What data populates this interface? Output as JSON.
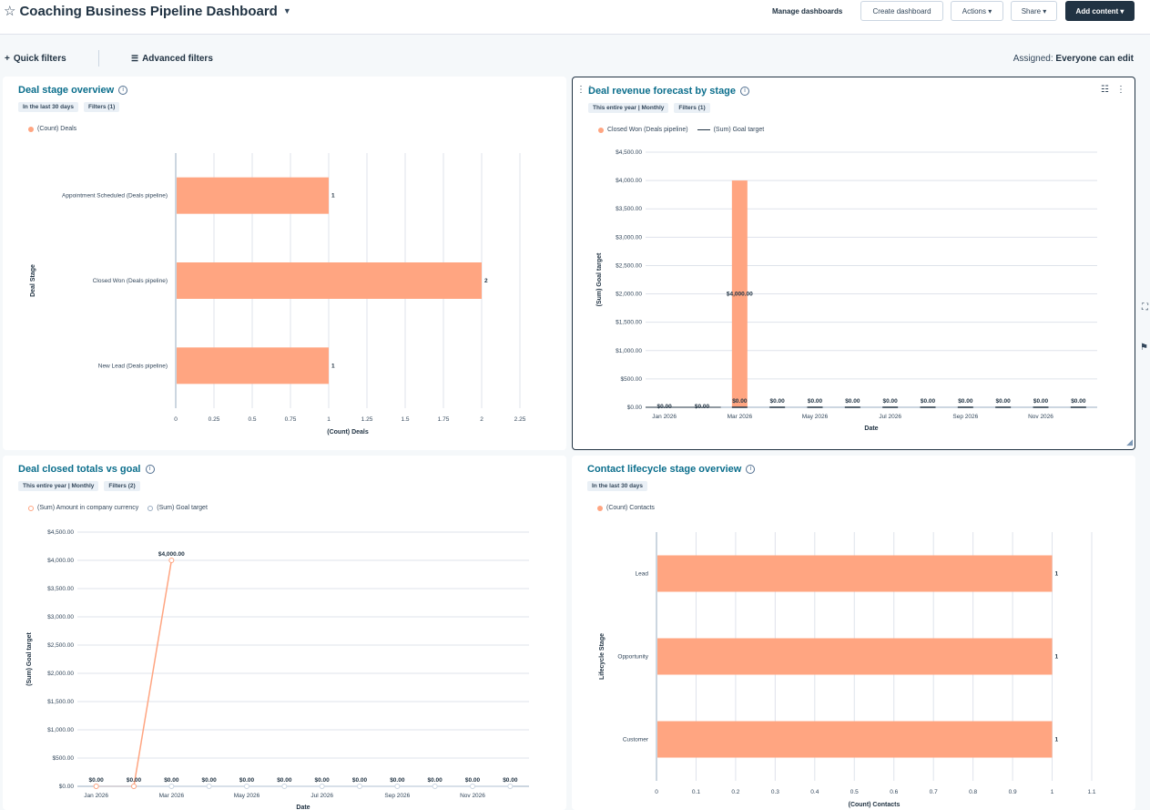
{
  "header": {
    "title": "Coaching Business Pipeline Dashboard",
    "manage": "Manage dashboards",
    "create": "Create dashboard",
    "actions": "Actions ▾",
    "share": "Share ▾",
    "add": "Add content ▾"
  },
  "filters": {
    "quick": "Quick filters",
    "advanced": "Advanced filters",
    "assigned_label": "Assigned:",
    "assigned_value": "Everyone can edit"
  },
  "colors": {
    "bar": "#ffa581",
    "accent": "#0b6e8c",
    "dark": "#213343"
  },
  "cards": {
    "deal_stage": {
      "title": "Deal stage overview",
      "chips": [
        "In the last 30 days",
        "Filters (1)"
      ],
      "legend": "(Count) Deals"
    },
    "revenue": {
      "title": "Deal revenue forecast by stage",
      "chips": [
        "This entire year | Monthly",
        "Filters (1)"
      ],
      "legend1": "Closed Won (Deals pipeline)",
      "legend2": "(Sum) Goal target"
    },
    "closed": {
      "title": "Deal closed totals vs goal",
      "chips": [
        "This entire year | Monthly",
        "Filters (2)"
      ],
      "legend1": "(Sum) Amount in company currency",
      "legend2": "(Sum) Goal target"
    },
    "lifecycle": {
      "title": "Contact lifecycle stage overview",
      "chips": [
        "In the last 30 days"
      ],
      "legend": "(Count) Contacts"
    }
  },
  "chart_data": [
    {
      "type": "bar",
      "orientation": "horizontal",
      "categories": [
        "Appointment Scheduled (Deals pipeline)",
        "Closed Won (Deals pipeline)",
        "New Lead (Deals pipeline)"
      ],
      "values": [
        1,
        2,
        1
      ],
      "data_labels": [
        "1",
        "2",
        "1"
      ],
      "xlabel": "(Count) Deals",
      "ylabel": "Deal Stage",
      "xlim": [
        0,
        2.25
      ],
      "x_ticks": [
        "0",
        "0.25",
        "0.5",
        "0.75",
        "1",
        "1.25",
        "1.5",
        "1.75",
        "2",
        "2.25"
      ],
      "grid": true
    },
    {
      "type": "bar",
      "categories": [
        "Jan 2026",
        "Feb 2026",
        "Mar 2026",
        "Apr 2026",
        "May 2026",
        "Jun 2026",
        "Jul 2026",
        "Aug 2026",
        "Sep 2026",
        "Oct 2026",
        "Nov 2026",
        "Dec 2026"
      ],
      "x_tick_labels": [
        "Jan 2026",
        "",
        "Mar 2026",
        "",
        "May 2026",
        "",
        "Jul 2026",
        "",
        "Sep 2026",
        "",
        "Nov 2026",
        ""
      ],
      "series": [
        {
          "name": "Closed Won (Deals pipeline)",
          "values": [
            0,
            0,
            4000,
            0,
            0,
            0,
            0,
            0,
            0,
            0,
            0,
            0
          ]
        },
        {
          "name": "(Sum) Goal target",
          "values": [
            0,
            0,
            0,
            0,
            0,
            0,
            0,
            0,
            0,
            0,
            0,
            0
          ]
        }
      ],
      "data_labels": [
        "$0.00",
        "$0.00",
        "$4,000.00",
        "$0.00",
        "$0.00",
        "$0.00",
        "$0.00",
        "$0.00",
        "$0.00",
        "$0.00",
        "$0.00",
        "$0.00"
      ],
      "bar_top_labels": [
        "",
        "",
        "$0.00",
        "$0.00",
        "$0.00",
        "$0.00",
        "$0.00",
        "$0.00",
        "$0.00",
        "$0.00",
        "$0.00",
        "$0.00"
      ],
      "xlabel": "Date",
      "ylabel": "(Sum) Goal target",
      "ylim": [
        0,
        4500
      ],
      "y_ticks": [
        "$0.00",
        "$500.00",
        "$1,000.00",
        "$1,500.00",
        "$2,000.00",
        "$2,500.00",
        "$3,000.00",
        "$3,500.00",
        "$4,000.00",
        "$4,500.00"
      ],
      "grid": true
    },
    {
      "type": "line",
      "x": [
        "Jan 2026",
        "Feb 2026",
        "Mar 2026",
        "Apr 2026",
        "May 2026",
        "Jun 2026",
        "Jul 2026",
        "Aug 2026",
        "Sep 2026",
        "Oct 2026",
        "Nov 2026",
        "Dec 2026"
      ],
      "x_tick_labels": [
        "Jan 2026",
        "",
        "Mar 2026",
        "",
        "May 2026",
        "",
        "Jul 2026",
        "",
        "Sep 2026",
        "",
        "Nov 2026",
        ""
      ],
      "series": [
        {
          "name": "(Sum) Amount in company currency",
          "values": [
            0,
            0,
            4000,
            null,
            null,
            null,
            null,
            null,
            null,
            null,
            null,
            null
          ]
        },
        {
          "name": "(Sum) Goal target",
          "values": [
            0,
            0,
            0,
            0,
            0,
            0,
            0,
            0,
            0,
            0,
            0,
            0
          ]
        }
      ],
      "data_labels": [
        "$0.00",
        "$0.00",
        "$4,000.00",
        "$0.00",
        "$0.00",
        "$0.00",
        "$0.00",
        "$0.00",
        "$0.00",
        "$0.00",
        "$0.00",
        "$0.00"
      ],
      "bottom_labels": [
        "$0.00",
        "$0.00",
        "$0.00",
        "$0.00",
        "$0.00",
        "$0.00",
        "$0.00",
        "$0.00",
        "$0.00",
        "$0.00",
        "$0.00",
        "$0.00"
      ],
      "xlabel": "Date",
      "ylabel": "(Sum) Goal target",
      "ylim": [
        0,
        4500
      ],
      "y_ticks": [
        "$0.00",
        "$500.00",
        "$1,000.00",
        "$1,500.00",
        "$2,000.00",
        "$2,500.00",
        "$3,000.00",
        "$3,500.00",
        "$4,000.00",
        "$4,500.00"
      ],
      "grid": true
    },
    {
      "type": "bar",
      "orientation": "horizontal",
      "categories": [
        "Lead",
        "Opportunity",
        "Customer"
      ],
      "values": [
        1,
        1,
        1
      ],
      "data_labels": [
        "1",
        "1",
        "1"
      ],
      "xlabel": "(Count) Contacts",
      "ylabel": "Lifecycle Stage",
      "xlim": [
        0,
        1.1
      ],
      "x_ticks": [
        "0",
        "0.1",
        "0.2",
        "0.3",
        "0.4",
        "0.5",
        "0.6",
        "0.7",
        "0.8",
        "0.9",
        "1",
        "1.1"
      ],
      "grid": true
    }
  ]
}
